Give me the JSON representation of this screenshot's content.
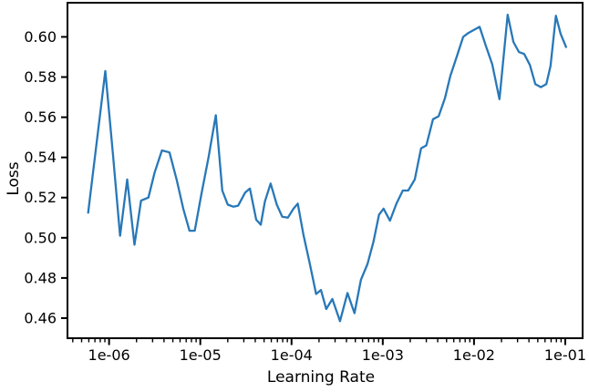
{
  "chart_data": {
    "type": "line",
    "title": "",
    "xlabel": "Learning Rate",
    "ylabel": "Loss",
    "x_scale": "log",
    "y_scale": "linear",
    "xlim": [
      3.5e-07,
      0.155
    ],
    "ylim": [
      0.45,
      0.617
    ],
    "grid": false,
    "legend": null,
    "line_color": "#2878b8",
    "axis_color": "#000000",
    "background_color": "#ffffff",
    "x_ticks": [
      {
        "value": 1e-06,
        "label": "1e-06"
      },
      {
        "value": 1e-05,
        "label": "1e-05"
      },
      {
        "value": 0.0001,
        "label": "1e-04"
      },
      {
        "value": 0.001,
        "label": "1e-03"
      },
      {
        "value": 0.01,
        "label": "1e-02"
      },
      {
        "value": 0.1,
        "label": "1e-01"
      }
    ],
    "y_ticks": [
      {
        "value": 0.46,
        "label": "0.46"
      },
      {
        "value": 0.48,
        "label": "0.48"
      },
      {
        "value": 0.5,
        "label": "0.50"
      },
      {
        "value": 0.52,
        "label": "0.52"
      },
      {
        "value": 0.54,
        "label": "0.54"
      },
      {
        "value": 0.56,
        "label": "0.56"
      },
      {
        "value": 0.58,
        "label": "0.58"
      },
      {
        "value": 0.6,
        "label": "0.60"
      }
    ],
    "series": [
      {
        "name": "loss",
        "points": [
          [
            5.9e-07,
            0.5125
          ],
          [
            6.9e-07,
            0.538
          ],
          [
            7.9e-07,
            0.56
          ],
          [
            9.1e-07,
            0.583
          ],
          [
            1.1e-06,
            0.542
          ],
          [
            1.32e-06,
            0.501
          ],
          [
            1.58e-06,
            0.529
          ],
          [
            1.9e-06,
            0.4965
          ],
          [
            2.24e-06,
            0.5185
          ],
          [
            2.7e-06,
            0.52
          ],
          [
            3.16e-06,
            0.5325
          ],
          [
            3.8e-06,
            0.5435
          ],
          [
            4.6e-06,
            0.5425
          ],
          [
            5.5e-06,
            0.529
          ],
          [
            6.5e-06,
            0.5145
          ],
          [
            7.6e-06,
            0.5035
          ],
          [
            8.7e-06,
            0.5035
          ],
          [
            1.02e-05,
            0.521
          ],
          [
            1.23e-05,
            0.54
          ],
          [
            1.48e-05,
            0.561
          ],
          [
            1.74e-05,
            0.5235
          ],
          [
            2e-05,
            0.5165
          ],
          [
            2.3e-05,
            0.5155
          ],
          [
            2.6e-05,
            0.516
          ],
          [
            3.1e-05,
            0.5225
          ],
          [
            3.5e-05,
            0.5245
          ],
          [
            4.1e-05,
            0.509
          ],
          [
            4.6e-05,
            0.5065
          ],
          [
            5.1e-05,
            0.518
          ],
          [
            5.9e-05,
            0.527
          ],
          [
            6.9e-05,
            0.5165
          ],
          [
            7.9e-05,
            0.5105
          ],
          [
            9.1e-05,
            0.51
          ],
          [
            0.000105,
            0.5145
          ],
          [
            0.000117,
            0.517
          ],
          [
            0.000135,
            0.5015
          ],
          [
            0.000158,
            0.4875
          ],
          [
            0.000186,
            0.472
          ],
          [
            0.00021,
            0.474
          ],
          [
            0.00024,
            0.4645
          ],
          [
            0.00028,
            0.4695
          ],
          [
            0.00034,
            0.4585
          ],
          [
            0.00041,
            0.4725
          ],
          [
            0.00049,
            0.4625
          ],
          [
            0.000575,
            0.479
          ],
          [
            0.00068,
            0.487
          ],
          [
            0.00079,
            0.498
          ],
          [
            0.00091,
            0.5115
          ],
          [
            0.00102,
            0.5145
          ],
          [
            0.0012,
            0.5085
          ],
          [
            0.00141,
            0.517
          ],
          [
            0.00166,
            0.5235
          ],
          [
            0.0019,
            0.5235
          ],
          [
            0.00224,
            0.529
          ],
          [
            0.00263,
            0.5445
          ],
          [
            0.003,
            0.546
          ],
          [
            0.00355,
            0.559
          ],
          [
            0.0041,
            0.5605
          ],
          [
            0.0048,
            0.5695
          ],
          [
            0.0055,
            0.5805
          ],
          [
            0.0065,
            0.5905
          ],
          [
            0.0076,
            0.6
          ],
          [
            0.0087,
            0.602
          ],
          [
            0.01,
            0.6035
          ],
          [
            0.0115,
            0.605
          ],
          [
            0.0135,
            0.5955
          ],
          [
            0.0158,
            0.5865
          ],
          [
            0.019,
            0.569
          ],
          [
            0.0234,
            0.611
          ],
          [
            0.027,
            0.5975
          ],
          [
            0.031,
            0.5925
          ],
          [
            0.0355,
            0.5915
          ],
          [
            0.041,
            0.586
          ],
          [
            0.047,
            0.5765
          ],
          [
            0.054,
            0.575
          ],
          [
            0.062,
            0.5765
          ],
          [
            0.069,
            0.5855
          ],
          [
            0.079,
            0.6105
          ],
          [
            0.089,
            0.6015
          ],
          [
            0.102,
            0.595
          ]
        ]
      }
    ]
  }
}
